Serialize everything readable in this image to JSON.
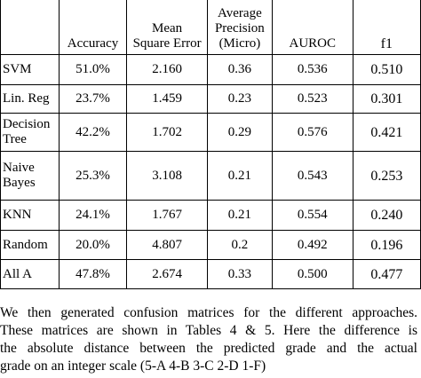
{
  "table": {
    "headers": [
      "",
      "Accuracy",
      "Mean Square Error",
      "Average Precision (Micro)",
      "AUROC",
      "f1"
    ],
    "header_lines": [
      [
        ""
      ],
      [
        "Accuracy"
      ],
      [
        "Mean",
        "Square Error"
      ],
      [
        "Average",
        "Precision",
        "(Micro)"
      ],
      [
        "AUROC"
      ],
      [
        "f1"
      ]
    ],
    "rows": [
      {
        "method": "SVM",
        "accuracy": "51.0%",
        "mse": "2.160",
        "ap": "0.36",
        "auroc": "0.536",
        "f1": "0.510"
      },
      {
        "method": "Lin. Reg",
        "accuracy": "23.7%",
        "mse": "1.459",
        "ap": "0.23",
        "auroc": "0.523",
        "f1": "0.301"
      },
      {
        "method": "Decision Tree",
        "method_lines": [
          "Decision",
          "Tree"
        ],
        "accuracy": "42.2%",
        "mse": "1.702",
        "ap": "0.29",
        "auroc": "0.576",
        "f1": "0.421"
      },
      {
        "method": "Naive Bayes",
        "method_lines": [
          "Naive",
          "Bayes"
        ],
        "accuracy": "25.3%",
        "mse": "3.108",
        "ap": "0.21",
        "auroc": "0.543",
        "f1": "0.253"
      },
      {
        "method": "KNN",
        "accuracy": "24.1%",
        "mse": "1.767",
        "ap": "0.21",
        "auroc": "0.554",
        "f1": "0.240"
      },
      {
        "method": "Random",
        "accuracy": "20.0%",
        "mse": "4.807",
        "ap": "0.2",
        "auroc": "0.492",
        "f1": "0.196"
      },
      {
        "method": "All A",
        "accuracy": "47.8%",
        "mse": "2.674",
        "ap": "0.33",
        "auroc": "0.500",
        "f1": "0.477"
      }
    ]
  },
  "paragraph": {
    "lines": [
      "We then generated confusion matrices for the different approaches.",
      "These matrices are shown in Tables 4 & 5.  Here the difference is",
      "the absolute distance between the predicted grade and the actual",
      "grade on an integer scale (5-A 4-B 3-C 2-D 1-F)"
    ]
  }
}
